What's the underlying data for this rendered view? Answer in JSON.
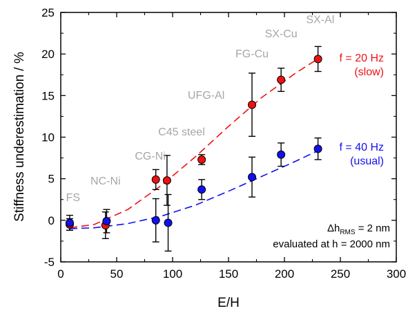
{
  "chart_data": {
    "type": "scatter",
    "xlabel": "E/H",
    "ylabel": "Stiffness underestimation / %",
    "xlim": [
      0,
      300
    ],
    "ylim": [
      -5,
      25
    ],
    "x_ticks": [
      0,
      50,
      100,
      150,
      200,
      250,
      300
    ],
    "y_ticks": [
      -5,
      0,
      5,
      10,
      15,
      20,
      25
    ],
    "x_tick_labels": [
      "0",
      "50",
      "100",
      "150",
      "200",
      "250",
      "300"
    ],
    "y_tick_labels": [
      "-5",
      "0",
      "5",
      "10",
      "15",
      "20",
      "25"
    ],
    "grid": false,
    "series": [
      {
        "name": "f = 20 Hz (slow)",
        "label_lines": [
          "f = 20 Hz",
          "(slow)"
        ],
        "color": "#ee1111",
        "points": [
          {
            "x": 8,
            "y": -0.5,
            "err": 0.7
          },
          {
            "x": 40,
            "y": -0.6,
            "err": 1.6
          },
          {
            "x": 85,
            "y": 4.9,
            "err": 1.2
          },
          {
            "x": 95,
            "y": 4.8,
            "err": 3.0
          },
          {
            "x": 126,
            "y": 7.3,
            "err": 0.6
          },
          {
            "x": 171,
            "y": 13.9,
            "err": 3.8
          },
          {
            "x": 197,
            "y": 16.9,
            "err": 1.4
          },
          {
            "x": 230,
            "y": 19.4,
            "err": 1.5
          }
        ],
        "fit": [
          [
            8,
            -0.9
          ],
          [
            30,
            -0.5
          ],
          [
            60,
            1.3
          ],
          [
            90,
            4.2
          ],
          [
            120,
            7.6
          ],
          [
            150,
            11.3
          ],
          [
            180,
            14.8
          ],
          [
            210,
            17.7
          ],
          [
            232,
            19.6
          ]
        ]
      },
      {
        "name": "f = 40 Hz (usual)",
        "label_lines": [
          "f = 40 Hz",
          "(usual)"
        ],
        "color": "#1111ee",
        "points": [
          {
            "x": 8,
            "y": -0.3,
            "err": 0.9
          },
          {
            "x": 41,
            "y": -0.1,
            "err": 1.4
          },
          {
            "x": 85,
            "y": 0.0,
            "err": 2.6
          },
          {
            "x": 96,
            "y": -0.3,
            "err": 3.4
          },
          {
            "x": 126,
            "y": 3.7,
            "err": 1.2
          },
          {
            "x": 171,
            "y": 5.2,
            "err": 2.4
          },
          {
            "x": 197,
            "y": 7.9,
            "err": 1.4
          },
          {
            "x": 230,
            "y": 8.6,
            "err": 1.3
          }
        ],
        "fit": [
          [
            8,
            -1.0
          ],
          [
            30,
            -0.9
          ],
          [
            60,
            -0.4
          ],
          [
            90,
            0.5
          ],
          [
            120,
            1.8
          ],
          [
            150,
            3.5
          ],
          [
            180,
            5.3
          ],
          [
            210,
            7.1
          ],
          [
            232,
            8.5
          ]
        ]
      }
    ],
    "material_labels": [
      {
        "text": "FS",
        "x": 11,
        "y": 2.3
      },
      {
        "text": "NC-Ni",
        "x": 40,
        "y": 4.3
      },
      {
        "text": "CG-Ni",
        "x": 80,
        "y": 7.3
      },
      {
        "text": "C45 steel",
        "x": 108,
        "y": 10.2
      },
      {
        "text": "UFG-Al",
        "x": 130,
        "y": 14.6
      },
      {
        "text": "FG-Cu",
        "x": 171,
        "y": 19.6
      },
      {
        "text": "SX-Cu",
        "x": 197,
        "y": 22.0
      },
      {
        "text": "SX-Al",
        "x": 232,
        "y": 23.7
      }
    ],
    "material_label_color": "#a6a6a6",
    "annotations": {
      "line1": {
        "prefix": "Δh",
        "subscript": "RMS",
        "suffix": " = 2 nm"
      },
      "line2": "evaluated at h = 2000 nm"
    }
  }
}
